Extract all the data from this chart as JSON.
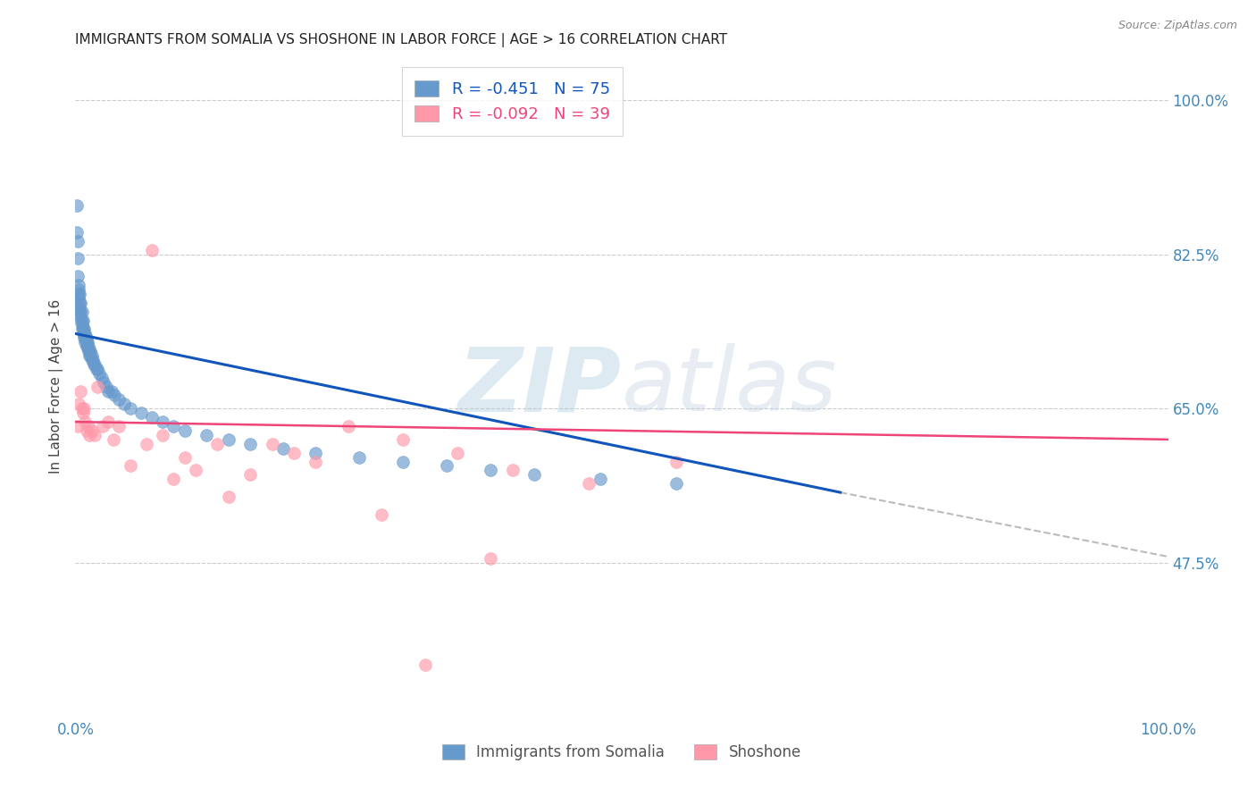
{
  "title": "IMMIGRANTS FROM SOMALIA VS SHOSHONE IN LABOR FORCE | AGE > 16 CORRELATION CHART",
  "source": "Source: ZipAtlas.com",
  "ylabel": "In Labor Force | Age > 16",
  "yticks": [
    47.5,
    65.0,
    82.5,
    100.0
  ],
  "ytick_labels": [
    "47.5%",
    "65.0%",
    "82.5%",
    "100.0%"
  ],
  "xlim": [
    0.0,
    1.0
  ],
  "ylim": [
    30.0,
    105.0
  ],
  "somalia_R": -0.451,
  "somalia_N": 75,
  "shoshone_R": -0.092,
  "shoshone_N": 39,
  "somalia_color": "#6699CC",
  "shoshone_color": "#FF99AA",
  "somalia_line_color": "#1155BB",
  "shoshone_line_color": "#EE4477",
  "dashed_line_color": "#BBBBBB",
  "background_color": "#FFFFFF",
  "title_fontsize": 11,
  "axis_label_color": "#5599CC",
  "tick_label_color": "#4488BB",
  "somalia_scatter_x": [
    0.001,
    0.001,
    0.002,
    0.002,
    0.002,
    0.003,
    0.003,
    0.003,
    0.003,
    0.004,
    0.004,
    0.004,
    0.004,
    0.005,
    0.005,
    0.005,
    0.005,
    0.006,
    0.006,
    0.006,
    0.006,
    0.007,
    0.007,
    0.007,
    0.008,
    0.008,
    0.008,
    0.009,
    0.009,
    0.009,
    0.01,
    0.01,
    0.01,
    0.011,
    0.011,
    0.012,
    0.012,
    0.013,
    0.013,
    0.014,
    0.014,
    0.015,
    0.015,
    0.016,
    0.017,
    0.018,
    0.019,
    0.02,
    0.022,
    0.024,
    0.026,
    0.028,
    0.03,
    0.033,
    0.036,
    0.04,
    0.045,
    0.05,
    0.06,
    0.07,
    0.08,
    0.09,
    0.1,
    0.12,
    0.14,
    0.16,
    0.19,
    0.22,
    0.26,
    0.3,
    0.34,
    0.38,
    0.42,
    0.48,
    0.55
  ],
  "somalia_scatter_y": [
    88.0,
    85.0,
    84.0,
    82.0,
    80.0,
    79.0,
    78.5,
    78.0,
    77.5,
    78.0,
    77.0,
    76.5,
    76.0,
    77.0,
    76.0,
    75.5,
    75.0,
    76.0,
    75.0,
    74.5,
    74.0,
    75.0,
    74.0,
    73.5,
    74.0,
    73.5,
    73.0,
    73.5,
    73.0,
    72.5,
    73.0,
    72.5,
    72.0,
    72.5,
    72.0,
    72.0,
    71.5,
    71.5,
    71.0,
    71.5,
    71.0,
    71.0,
    70.5,
    70.5,
    70.0,
    70.0,
    69.5,
    69.5,
    69.0,
    68.5,
    68.0,
    67.5,
    67.0,
    67.0,
    66.5,
    66.0,
    65.5,
    65.0,
    64.5,
    64.0,
    63.5,
    63.0,
    62.5,
    62.0,
    61.5,
    61.0,
    60.5,
    60.0,
    59.5,
    59.0,
    58.5,
    58.0,
    57.5,
    57.0,
    56.5
  ],
  "shoshone_scatter_x": [
    0.002,
    0.003,
    0.005,
    0.006,
    0.007,
    0.008,
    0.009,
    0.01,
    0.012,
    0.013,
    0.015,
    0.018,
    0.02,
    0.025,
    0.03,
    0.035,
    0.04,
    0.05,
    0.065,
    0.08,
    0.1,
    0.13,
    0.16,
    0.2,
    0.25,
    0.3,
    0.35,
    0.4,
    0.47,
    0.55,
    0.32,
    0.38,
    0.28,
    0.22,
    0.18,
    0.14,
    0.11,
    0.09,
    0.07
  ],
  "shoshone_scatter_y": [
    63.0,
    65.5,
    67.0,
    65.0,
    64.5,
    65.0,
    63.5,
    62.5,
    63.0,
    62.0,
    62.5,
    62.0,
    67.5,
    63.0,
    63.5,
    61.5,
    63.0,
    58.5,
    61.0,
    62.0,
    59.5,
    61.0,
    57.5,
    60.0,
    63.0,
    61.5,
    60.0,
    58.0,
    56.5,
    59.0,
    36.0,
    48.0,
    53.0,
    59.0,
    61.0,
    55.0,
    58.0,
    57.0,
    83.0
  ],
  "somalia_line_x": [
    0.0,
    0.7
  ],
  "somalia_line_y": [
    73.5,
    55.5
  ],
  "shoshone_line_x": [
    0.0,
    1.0
  ],
  "shoshone_line_y": [
    63.5,
    61.5
  ],
  "dashed_line_x": [
    0.7,
    1.05
  ],
  "dashed_line_y": [
    55.5,
    47.0
  ]
}
